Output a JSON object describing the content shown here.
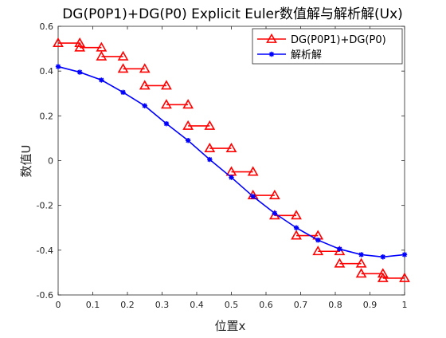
{
  "chart_data": {
    "type": "line",
    "title": "DG(P0P1)+DG(P0) Explicit Euler数值解与解析解(Ux)",
    "xlabel": "位置x",
    "ylabel": "数值U",
    "xlim": [
      0,
      1
    ],
    "ylim": [
      -0.6,
      0.6
    ],
    "x_ticks": [
      "0",
      "0.1",
      "0.2",
      "0.3",
      "0.4",
      "0.5",
      "0.6",
      "0.7",
      "0.8",
      "0.9",
      "1"
    ],
    "y_ticks": [
      "-0.6",
      "-0.4",
      "-0.2",
      "0",
      "0.2",
      "0.4",
      "0.6"
    ],
    "grid": false,
    "legend_position": "top-right",
    "series": [
      {
        "name": "DG(P0P1)+DG(P0)",
        "color": "#ff0000",
        "marker": "triangle",
        "style": "piecewise-constant segments",
        "segments": [
          {
            "x": [
              0,
              0.0625
            ],
            "y": 0.525
          },
          {
            "x": [
              0.0625,
              0.125
            ],
            "y": 0.505
          },
          {
            "x": [
              0.125,
              0.1875
            ],
            "y": 0.465
          },
          {
            "x": [
              0.1875,
              0.25
            ],
            "y": 0.41
          },
          {
            "x": [
              0.25,
              0.3125
            ],
            "y": 0.335
          },
          {
            "x": [
              0.3125,
              0.375
            ],
            "y": 0.25
          },
          {
            "x": [
              0.375,
              0.4375
            ],
            "y": 0.155
          },
          {
            "x": [
              0.4375,
              0.5
            ],
            "y": 0.055
          },
          {
            "x": [
              0.5,
              0.5625
            ],
            "y": -0.05
          },
          {
            "x": [
              0.5625,
              0.625
            ],
            "y": -0.155
          },
          {
            "x": [
              0.625,
              0.6875
            ],
            "y": -0.245
          },
          {
            "x": [
              0.6875,
              0.75
            ],
            "y": -0.335
          },
          {
            "x": [
              0.75,
              0.8125
            ],
            "y": -0.405
          },
          {
            "x": [
              0.8125,
              0.875
            ],
            "y": -0.46
          },
          {
            "x": [
              0.875,
              0.9375
            ],
            "y": -0.505
          },
          {
            "x": [
              0.9375,
              1.0
            ],
            "y": -0.525
          }
        ]
      },
      {
        "name": "解析解",
        "color": "#0000ff",
        "marker": "asterisk",
        "x": [
          0,
          0.0625,
          0.125,
          0.1875,
          0.25,
          0.3125,
          0.375,
          0.4375,
          0.5,
          0.5625,
          0.625,
          0.6875,
          0.75,
          0.8125,
          0.875,
          0.9375,
          1.0
        ],
        "y": [
          0.42,
          0.395,
          0.36,
          0.305,
          0.245,
          0.165,
          0.09,
          0.005,
          -0.075,
          -0.16,
          -0.235,
          -0.3,
          -0.355,
          -0.395,
          -0.42,
          -0.43,
          -0.42
        ]
      }
    ]
  }
}
